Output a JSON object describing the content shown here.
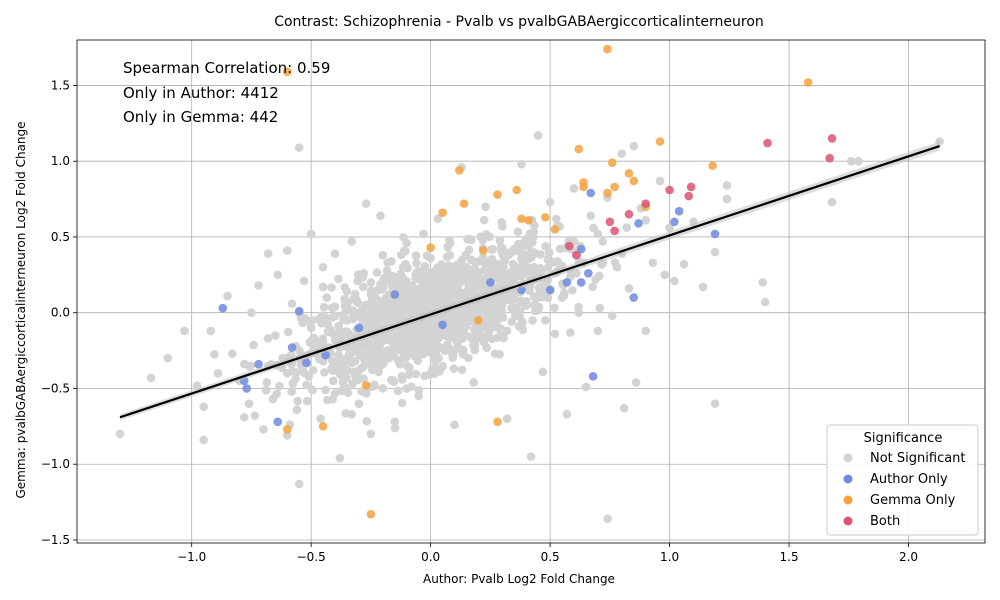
{
  "chart_data": {
    "type": "scatter",
    "title": "Contrast: Schizophrenia - Pvalb vs pvalbGABAergiccorticalinterneuron",
    "xlabel": "Author: Pvalb Log2 Fold Change",
    "ylabel": "Gemma: pvalbGABAergiccorticalinterneuron Log2 Fold Change",
    "xlim": [
      -1.48,
      2.32
    ],
    "ylim": [
      -1.52,
      1.8
    ],
    "xticks": [
      -1.0,
      -0.5,
      0.0,
      0.5,
      1.0,
      1.5,
      2.0
    ],
    "xtick_labels": [
      "−1.0",
      "−0.5",
      "0.0",
      "0.5",
      "1.0",
      "1.5",
      "2.0"
    ],
    "yticks": [
      -1.5,
      -1.0,
      -0.5,
      0.0,
      0.5,
      1.0,
      1.5
    ],
    "ytick_labels": [
      "−1.5",
      "−1.0",
      "−0.5",
      "0.0",
      "0.5",
      "1.0",
      "1.5"
    ],
    "grid": true,
    "annotations": [
      "Spearman Correlation: 0.59",
      "Only in Author: 4412",
      "Only in Gemma: 442"
    ],
    "legend": {
      "title": "Significance",
      "placement": "lower-right",
      "entries": [
        "Not Significant",
        "Author Only",
        "Gemma Only",
        "Both"
      ]
    },
    "colors": {
      "not_significant": "#d3d3d3",
      "author_only": "#6d8ae0",
      "gemma_only": "#f5a23e",
      "both": "#dc5472",
      "regression": "#000000"
    },
    "regression_line": {
      "x": [
        -1.3,
        2.13
      ],
      "y": [
        -0.69,
        1.1
      ]
    },
    "series": [
      {
        "name": "Not Significant",
        "points": [
          [
            -1.3,
            -0.8
          ],
          [
            -1.17,
            -0.43
          ],
          [
            -1.1,
            -0.3
          ],
          [
            -1.03,
            -0.12
          ],
          [
            -0.95,
            -0.84
          ],
          [
            -0.95,
            -0.62
          ],
          [
            -0.92,
            -0.12
          ],
          [
            -0.89,
            -0.4
          ],
          [
            -0.85,
            0.11
          ],
          [
            -0.83,
            -0.27
          ],
          [
            -0.8,
            -0.45
          ],
          [
            -0.78,
            -0.69
          ],
          [
            -0.76,
            -0.6
          ],
          [
            -0.75,
            0.0
          ],
          [
            -0.72,
            0.18
          ],
          [
            -0.7,
            -0.77
          ],
          [
            -0.68,
            0.39
          ],
          [
            -0.66,
            -0.57
          ],
          [
            -0.64,
            0.25
          ],
          [
            -0.62,
            -0.3
          ],
          [
            -0.6,
            0.41
          ],
          [
            -0.6,
            -0.81
          ],
          [
            -0.58,
            0.06
          ],
          [
            -0.56,
            -0.64
          ],
          [
            -0.55,
            1.09
          ],
          [
            -0.55,
            -1.13
          ],
          [
            -0.53,
            0.21
          ],
          [
            -0.51,
            -0.42
          ],
          [
            -0.5,
            0.52
          ],
          [
            -0.48,
            -0.27
          ],
          [
            -0.46,
            -0.7
          ],
          [
            -0.45,
            0.3
          ],
          [
            -0.43,
            -0.08
          ],
          [
            -0.41,
            -0.57
          ],
          [
            -0.4,
            0.39
          ],
          [
            -0.38,
            -0.96
          ],
          [
            -0.36,
            0.09
          ],
          [
            -0.35,
            -0.38
          ],
          [
            -0.33,
            0.47
          ],
          [
            -0.31,
            -0.17
          ],
          [
            -0.3,
            -0.6
          ],
          [
            -0.28,
            0.26
          ],
          [
            -0.27,
            0.72
          ],
          [
            -0.25,
            -0.8
          ],
          [
            -0.23,
            0.0
          ],
          [
            -0.21,
            0.64
          ],
          [
            -0.2,
            -0.5
          ],
          [
            -0.18,
            0.33
          ],
          [
            -0.16,
            -0.25
          ],
          [
            -0.15,
            -0.72
          ],
          [
            -0.13,
            0.1
          ],
          [
            -0.11,
            0.41
          ],
          [
            -0.1,
            -0.35
          ],
          [
            -0.08,
            -0.13
          ],
          [
            -0.06,
            0.26
          ],
          [
            -0.05,
            -0.55
          ],
          [
            -0.03,
            0.52
          ],
          [
            -0.02,
            -0.04
          ],
          [
            0.0,
            0.17
          ],
          [
            0.02,
            -0.32
          ],
          [
            0.03,
            0.62
          ],
          [
            0.05,
            0.05
          ],
          [
            0.07,
            -0.21
          ],
          [
            0.08,
            0.38
          ],
          [
            0.1,
            -0.74
          ],
          [
            0.12,
            0.12
          ],
          [
            0.13,
            0.96
          ],
          [
            0.15,
            -0.09
          ],
          [
            0.17,
            0.48
          ],
          [
            0.18,
            -0.46
          ],
          [
            0.2,
            0.21
          ],
          [
            0.22,
            -0.01
          ],
          [
            0.23,
            0.7
          ],
          [
            0.25,
            0.33
          ],
          [
            0.27,
            -0.27
          ],
          [
            0.28,
            0.03
          ],
          [
            0.3,
            0.57
          ],
          [
            0.32,
            -0.7
          ],
          [
            0.33,
            0.16
          ],
          [
            0.35,
            0.42
          ],
          [
            0.37,
            -0.09
          ],
          [
            0.38,
            0.98
          ],
          [
            0.4,
            0.26
          ],
          [
            0.42,
            -0.95
          ],
          [
            0.43,
            0.5
          ],
          [
            0.45,
            0.02
          ],
          [
            0.45,
            1.17
          ],
          [
            0.47,
            -0.39
          ],
          [
            0.49,
            0.35
          ],
          [
            0.5,
            0.73
          ],
          [
            0.52,
            -0.14
          ],
          [
            0.54,
            0.57
          ],
          [
            0.55,
            0.1
          ],
          [
            0.57,
            -0.67
          ],
          [
            0.59,
            0.42
          ],
          [
            0.6,
            0.82
          ],
          [
            0.62,
            0.0
          ],
          [
            0.64,
            0.33
          ],
          [
            0.65,
            -0.49
          ],
          [
            0.67,
            0.64
          ],
          [
            0.69,
            0.22
          ],
          [
            0.7,
            -0.12
          ],
          [
            0.72,
            0.47
          ],
          [
            0.74,
            0.76
          ],
          [
            0.74,
            -1.36
          ],
          [
            0.76,
            -0.02
          ],
          [
            0.78,
            0.3
          ],
          [
            0.8,
            1.05
          ],
          [
            0.81,
            -0.63
          ],
          [
            0.83,
            0.16
          ],
          [
            0.85,
            1.1
          ],
          [
            0.86,
            -0.46
          ],
          [
            0.88,
            0.69
          ],
          [
            0.9,
            -0.12
          ],
          [
            0.93,
            0.33
          ],
          [
            0.96,
            0.87
          ],
          [
            0.98,
            0.25
          ],
          [
            1.0,
            0.56
          ],
          [
            1.02,
            0.21
          ],
          [
            1.06,
            0.32
          ],
          [
            1.1,
            0.6
          ],
          [
            1.14,
            0.17
          ],
          [
            1.19,
            0.4
          ],
          [
            1.19,
            -0.6
          ],
          [
            1.24,
            0.84
          ],
          [
            1.24,
            0.75
          ],
          [
            1.39,
            0.2
          ],
          [
            1.4,
            0.07
          ],
          [
            1.76,
            1.0
          ],
          [
            1.79,
            1.0
          ],
          [
            1.68,
            0.73
          ],
          [
            2.13,
            1.13
          ],
          [
            -0.45,
            0.17
          ],
          [
            -0.35,
            0.14
          ],
          [
            -0.25,
            0.2
          ],
          [
            -0.15,
            0.22
          ],
          [
            -0.05,
            0.24
          ],
          [
            0.05,
            0.28
          ],
          [
            0.15,
            0.3
          ],
          [
            -0.4,
            -0.18
          ],
          [
            -0.3,
            -0.22
          ],
          [
            -0.2,
            -0.14
          ],
          [
            -0.1,
            -0.1
          ],
          [
            0.0,
            -0.06
          ],
          [
            0.1,
            -0.02
          ],
          [
            0.2,
            0.04
          ],
          [
            0.3,
            0.08
          ],
          [
            -0.5,
            -0.1
          ],
          [
            -0.35,
            -0.05
          ],
          [
            -0.25,
            0.03
          ],
          [
            -0.15,
            0.07
          ],
          [
            -0.05,
            0.11
          ],
          [
            0.05,
            0.13
          ],
          [
            0.25,
            0.19
          ],
          [
            0.35,
            0.23
          ],
          [
            0.45,
            0.28
          ],
          [
            0.55,
            0.31
          ],
          [
            -0.55,
            -0.25
          ],
          [
            -0.45,
            -0.32
          ],
          [
            -0.3,
            -0.38
          ],
          [
            -0.12,
            -0.42
          ],
          [
            0.02,
            -0.3
          ],
          [
            0.18,
            -0.19
          ],
          [
            0.32,
            -0.12
          ],
          [
            0.48,
            -0.05
          ],
          [
            -0.6,
            -0.4
          ],
          [
            -0.65,
            -0.15
          ],
          [
            -0.68,
            -0.35
          ],
          [
            -0.55,
            0.0
          ],
          [
            -0.2,
            0.38
          ],
          [
            -0.1,
            0.46
          ],
          [
            0.0,
            0.36
          ],
          [
            0.6,
            0.47
          ],
          [
            0.7,
            0.52
          ],
          [
            0.8,
            0.39
          ],
          [
            0.9,
            0.61
          ]
        ]
      },
      {
        "name": "Author Only",
        "points": [
          [
            -0.87,
            0.03
          ],
          [
            -0.78,
            -0.45
          ],
          [
            -0.77,
            -0.5
          ],
          [
            -0.72,
            -0.34
          ],
          [
            -0.64,
            -0.72
          ],
          [
            -0.58,
            -0.23
          ],
          [
            -0.55,
            0.01
          ],
          [
            -0.52,
            -0.33
          ],
          [
            -0.44,
            -0.28
          ],
          [
            -0.3,
            -0.1
          ],
          [
            -0.15,
            0.12
          ],
          [
            0.05,
            -0.08
          ],
          [
            0.25,
            0.2
          ],
          [
            0.38,
            0.15
          ],
          [
            0.5,
            0.15
          ],
          [
            0.57,
            0.2
          ],
          [
            0.63,
            0.2
          ],
          [
            0.63,
            0.42
          ],
          [
            0.66,
            0.26
          ],
          [
            0.67,
            0.79
          ],
          [
            0.68,
            -0.42
          ],
          [
            0.85,
            0.1
          ],
          [
            0.87,
            0.59
          ],
          [
            1.02,
            0.6
          ],
          [
            1.04,
            0.67
          ],
          [
            1.19,
            0.52
          ]
        ]
      },
      {
        "name": "Gemma Only",
        "points": [
          [
            -0.6,
            1.59
          ],
          [
            -0.6,
            -0.77
          ],
          [
            -0.45,
            -0.75
          ],
          [
            -0.25,
            -1.33
          ],
          [
            0.05,
            0.66
          ],
          [
            0.12,
            0.94
          ],
          [
            0.14,
            0.72
          ],
          [
            0.22,
            0.41
          ],
          [
            0.28,
            0.78
          ],
          [
            0.28,
            -0.72
          ],
          [
            0.36,
            0.81
          ],
          [
            0.38,
            0.62
          ],
          [
            0.41,
            0.61
          ],
          [
            0.48,
            0.63
          ],
          [
            0.52,
            0.55
          ],
          [
            0.62,
            1.08
          ],
          [
            0.64,
            0.86
          ],
          [
            0.64,
            0.83
          ],
          [
            0.74,
            1.74
          ],
          [
            0.74,
            0.79
          ],
          [
            0.76,
            0.99
          ],
          [
            0.77,
            0.83
          ],
          [
            0.83,
            0.92
          ],
          [
            0.85,
            0.87
          ],
          [
            0.9,
            0.7
          ],
          [
            0.96,
            1.13
          ],
          [
            1.18,
            0.97
          ],
          [
            1.58,
            1.52
          ],
          [
            0.0,
            0.43
          ],
          [
            0.2,
            -0.05
          ],
          [
            -0.27,
            -0.48
          ]
        ]
      },
      {
        "name": "Both",
        "points": [
          [
            0.58,
            0.44
          ],
          [
            0.61,
            0.38
          ],
          [
            0.75,
            0.6
          ],
          [
            0.77,
            0.54
          ],
          [
            0.83,
            0.65
          ],
          [
            0.9,
            0.72
          ],
          [
            1.0,
            0.81
          ],
          [
            1.08,
            0.77
          ],
          [
            1.09,
            0.83
          ],
          [
            1.41,
            1.12
          ],
          [
            1.67,
            1.02
          ],
          [
            1.68,
            1.15
          ]
        ]
      }
    ]
  }
}
